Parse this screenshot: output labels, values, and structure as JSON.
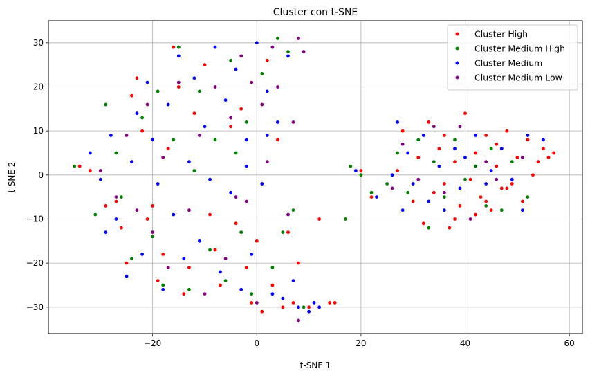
{
  "chart_data": {
    "type": "scatter",
    "title": "Cluster con t-SNE",
    "xlabel": "t-SNE 1",
    "ylabel": "t-SNE 2",
    "xlim": [
      -40,
      62.5
    ],
    "ylim": [
      -36,
      35
    ],
    "xticks": [
      -20,
      0,
      20,
      40,
      60
    ],
    "yticks": [
      -30,
      -20,
      -10,
      0,
      10,
      20,
      30
    ],
    "xtick_labels": [
      "−20",
      "0",
      "20",
      "40",
      "60"
    ],
    "ytick_labels": [
      "−30",
      "−20",
      "−10",
      "0",
      "10",
      "20",
      "30"
    ],
    "grid": true,
    "legend_position": "top-right",
    "series": [
      {
        "name": "Cluster High",
        "color": "#ff0000",
        "points": [
          [
            -34,
            2
          ],
          [
            -32,
            1
          ],
          [
            -29,
            -7
          ],
          [
            -27,
            -6
          ],
          [
            -26,
            -12
          ],
          [
            -25,
            -20
          ],
          [
            -24,
            18
          ],
          [
            -23,
            22
          ],
          [
            -22,
            10
          ],
          [
            -21,
            -10
          ],
          [
            -20,
            -7
          ],
          [
            -19,
            -24
          ],
          [
            -18,
            -18
          ],
          [
            -17,
            6
          ],
          [
            -16,
            29
          ],
          [
            -15,
            20
          ],
          [
            -14,
            -27
          ],
          [
            -13,
            -21
          ],
          [
            -12,
            14
          ],
          [
            -10,
            25
          ],
          [
            -9,
            -9
          ],
          [
            -8,
            -17
          ],
          [
            -7,
            -25
          ],
          [
            -5,
            11
          ],
          [
            -4,
            -11
          ],
          [
            -3,
            15
          ],
          [
            -2,
            -21
          ],
          [
            -1,
            -29
          ],
          [
            0,
            -15
          ],
          [
            1,
            -31
          ],
          [
            2,
            26
          ],
          [
            3,
            -25
          ],
          [
            4,
            8
          ],
          [
            5,
            -30
          ],
          [
            6,
            -13
          ],
          [
            7,
            -29
          ],
          [
            8,
            -20
          ],
          [
            10,
            -30
          ],
          [
            12,
            -30
          ],
          [
            14,
            -29
          ],
          [
            15,
            -29
          ],
          [
            12,
            -10
          ],
          [
            20,
            1
          ],
          [
            22,
            -5
          ],
          [
            27,
            1
          ],
          [
            28,
            10
          ],
          [
            30,
            -6
          ],
          [
            31,
            4
          ],
          [
            32,
            -11
          ],
          [
            33,
            12
          ],
          [
            34,
            -4
          ],
          [
            35,
            6
          ],
          [
            36,
            -2
          ],
          [
            37,
            -12
          ],
          [
            38,
            3
          ],
          [
            39,
            -7
          ],
          [
            40,
            14
          ],
          [
            41,
            -1
          ],
          [
            42,
            5
          ],
          [
            43,
            -5
          ],
          [
            44,
            9
          ],
          [
            45,
            -8
          ],
          [
            46,
            2
          ],
          [
            47,
            -3
          ],
          [
            48,
            10
          ],
          [
            49,
            -2
          ],
          [
            50,
            4
          ],
          [
            51,
            -6
          ],
          [
            52,
            8
          ],
          [
            53,
            0
          ],
          [
            54,
            3
          ],
          [
            55,
            6
          ],
          [
            56,
            4
          ],
          [
            57,
            5
          ],
          [
            48,
            -3
          ],
          [
            46,
            7
          ],
          [
            44,
            -6
          ],
          [
            42,
            -9
          ],
          [
            38,
            -10
          ],
          [
            36,
            9
          ]
        ]
      },
      {
        "name": "Cluster Medium High",
        "color": "#008000",
        "points": [
          [
            -35,
            2
          ],
          [
            -31,
            -9
          ],
          [
            -29,
            16
          ],
          [
            -27,
            5
          ],
          [
            -26,
            -5
          ],
          [
            -24,
            -19
          ],
          [
            -22,
            13
          ],
          [
            -20,
            -14
          ],
          [
            -19,
            19
          ],
          [
            -18,
            -25
          ],
          [
            -16,
            8
          ],
          [
            -15,
            29
          ],
          [
            -13,
            -26
          ],
          [
            -12,
            1
          ],
          [
            -11,
            19
          ],
          [
            -9,
            -17
          ],
          [
            -8,
            8
          ],
          [
            -6,
            -24
          ],
          [
            -5,
            26
          ],
          [
            -4,
            5
          ],
          [
            -3,
            -13
          ],
          [
            -2,
            12
          ],
          [
            -1,
            -27
          ],
          [
            1,
            23
          ],
          [
            3,
            -21
          ],
          [
            4,
            31
          ],
          [
            5,
            -13
          ],
          [
            6,
            28
          ],
          [
            7,
            -8
          ],
          [
            9,
            -30
          ],
          [
            17,
            -10
          ],
          [
            18,
            2
          ],
          [
            20,
            0
          ],
          [
            22,
            -4
          ],
          [
            25,
            -2
          ],
          [
            27,
            5
          ],
          [
            29,
            -4
          ],
          [
            31,
            8
          ],
          [
            33,
            -12
          ],
          [
            34,
            3
          ],
          [
            36,
            -5
          ],
          [
            38,
            8
          ],
          [
            40,
            -1
          ],
          [
            42,
            2
          ],
          [
            44,
            -7
          ],
          [
            45,
            6
          ],
          [
            47,
            -8
          ],
          [
            49,
            3
          ],
          [
            52,
            -5
          ]
        ]
      },
      {
        "name": "Cluster Medium",
        "color": "#0000ff",
        "points": [
          [
            -32,
            5
          ],
          [
            -30,
            -1
          ],
          [
            -29,
            -13
          ],
          [
            -28,
            9
          ],
          [
            -27,
            -10
          ],
          [
            -25,
            -23
          ],
          [
            -24,
            3
          ],
          [
            -23,
            14
          ],
          [
            -22,
            -18
          ],
          [
            -21,
            21
          ],
          [
            -20,
            8
          ],
          [
            -19,
            -2
          ],
          [
            -18,
            -26
          ],
          [
            -17,
            16
          ],
          [
            -16,
            -9
          ],
          [
            -15,
            27
          ],
          [
            -14,
            -19
          ],
          [
            -13,
            3
          ],
          [
            -12,
            22
          ],
          [
            -11,
            -15
          ],
          [
            -10,
            11
          ],
          [
            -9,
            -1
          ],
          [
            -8,
            29
          ],
          [
            -7,
            -22
          ],
          [
            -6,
            17
          ],
          [
            -5,
            -4
          ],
          [
            -4,
            24
          ],
          [
            -3,
            -26
          ],
          [
            -2,
            8
          ],
          [
            -1,
            -18
          ],
          [
            0,
            30
          ],
          [
            1,
            -2
          ],
          [
            2,
            19
          ],
          [
            3,
            -27
          ],
          [
            4,
            12
          ],
          [
            5,
            -28
          ],
          [
            6,
            27
          ],
          [
            7,
            -24
          ],
          [
            8,
            -30
          ],
          [
            10,
            -31
          ],
          [
            11,
            -29
          ],
          [
            12,
            -30
          ],
          [
            2,
            9
          ],
          [
            -2,
            2
          ],
          [
            19,
            1
          ],
          [
            23,
            -5
          ],
          [
            26,
            0
          ],
          [
            27,
            12
          ],
          [
            28,
            -8
          ],
          [
            29,
            5
          ],
          [
            30,
            -2
          ],
          [
            32,
            9
          ],
          [
            33,
            -6
          ],
          [
            35,
            2
          ],
          [
            36,
            -8
          ],
          [
            38,
            6
          ],
          [
            39,
            -3
          ],
          [
            40,
            4
          ],
          [
            42,
            9
          ],
          [
            44,
            -2
          ],
          [
            45,
            1
          ],
          [
            47,
            6
          ],
          [
            49,
            -1
          ],
          [
            51,
            -8
          ],
          [
            52,
            9
          ],
          [
            55,
            8
          ]
        ]
      },
      {
        "name": "Cluster Medium Low",
        "color": "#800080",
        "points": [
          [
            -30,
            1
          ],
          [
            -27,
            -5
          ],
          [
            -25,
            9
          ],
          [
            -23,
            -8
          ],
          [
            -21,
            16
          ],
          [
            -20,
            -13
          ],
          [
            -18,
            4
          ],
          [
            -17,
            -21
          ],
          [
            -15,
            21
          ],
          [
            -13,
            -8
          ],
          [
            -11,
            9
          ],
          [
            -10,
            -27
          ],
          [
            -8,
            20
          ],
          [
            -6,
            -19
          ],
          [
            -5,
            13
          ],
          [
            -3,
            27
          ],
          [
            -2,
            -6
          ],
          [
            -1,
            21
          ],
          [
            0,
            -29
          ],
          [
            1,
            16
          ],
          [
            3,
            29
          ],
          [
            4,
            20
          ],
          [
            6,
            -9
          ],
          [
            7,
            12
          ],
          [
            8,
            31
          ],
          [
            9,
            28
          ],
          [
            8,
            -33
          ],
          [
            2,
            3
          ],
          [
            -4,
            -5
          ],
          [
            26,
            -3
          ],
          [
            28,
            7
          ],
          [
            31,
            -1
          ],
          [
            34,
            11
          ],
          [
            36,
            -4
          ],
          [
            39,
            11
          ],
          [
            41,
            -10
          ],
          [
            44,
            3
          ],
          [
            46,
            -1
          ],
          [
            51,
            4
          ]
        ]
      }
    ]
  }
}
